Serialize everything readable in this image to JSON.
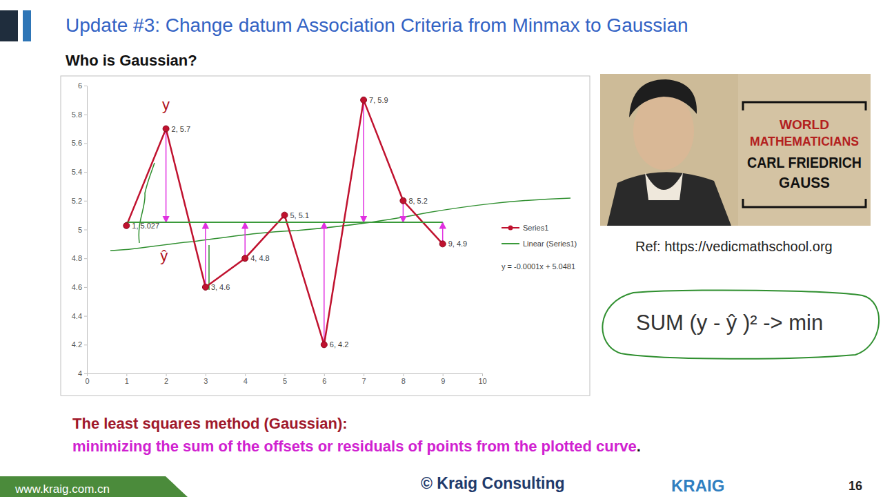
{
  "slide": {
    "title": "Update #3: Change datum Association Criteria from Minmax to Gaussian",
    "subtitle": "Who is Gaussian?",
    "image_text": [
      "WORLD",
      "MATHEMATICIANS",
      "CARL FRIEDRICH",
      "GAUSS"
    ],
    "reference": "Ref: https://vedicmathschool.org",
    "formula": "SUM (y - ŷ )² -> min",
    "caption_title": "The least squares method (Gaussian):",
    "caption_body": "minimizing the sum of the offsets or residuals of points from the plotted curve",
    "caption_end": ".",
    "footer_url": "www.kraig.com.cn",
    "footer_copyright": "© Kraig Consulting",
    "footer_logo": "KRAIG",
    "page_number": 16
  },
  "chart_data": {
    "type": "line",
    "x": [
      1,
      2,
      3,
      4,
      5,
      6,
      7,
      8,
      9
    ],
    "series": [
      {
        "name": "Series1",
        "color": "#c0122f",
        "marker": "circle",
        "line_style": "solid",
        "values": [
          5.027,
          5.7,
          4.6,
          4.8,
          5.1,
          4.2,
          5.9,
          5.2,
          4.9
        ],
        "value_labels": [
          "1, 5.027",
          "2, 5.7",
          "3, 4.6",
          "4, 4.8",
          "5, 5.1",
          "6, 4.2",
          "7, 5.9",
          "8, 5.2",
          "9, 4.9"
        ]
      },
      {
        "name": "Linear (Series1)",
        "color": "#3a9a3a",
        "line_style": "solid",
        "values": [
          5.05,
          5.05,
          5.05,
          5.05,
          5.05,
          5.05,
          5.05,
          5.05,
          5.05
        ]
      }
    ],
    "xlim": [
      0,
      10
    ],
    "xticks": [
      0,
      1,
      2,
      3,
      4,
      5,
      6,
      7,
      8,
      9,
      10
    ],
    "ylim": [
      4,
      6
    ],
    "yticks": [
      4,
      4.2,
      4.4,
      4.6,
      4.8,
      5,
      5.2,
      5.4,
      5.6,
      5.8,
      6
    ],
    "grid": false,
    "legend": "right",
    "data_labels": true,
    "annotations": [
      {
        "text": "y = -0.0001x + 5.0481"
      },
      {
        "text": "y",
        "x": 2,
        "y": 5.83
      },
      {
        "text": "ŷ",
        "x": 1.95,
        "y": 4.78
      }
    ]
  }
}
